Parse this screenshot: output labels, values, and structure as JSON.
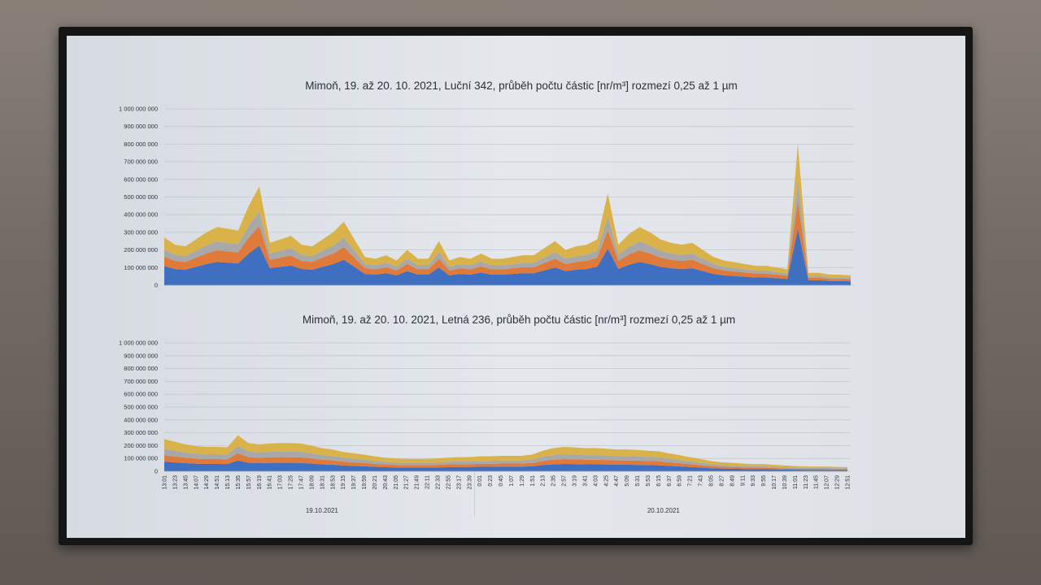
{
  "chart_data": [
    {
      "type": "area",
      "stacked": true,
      "title": "Mimoň, 19. až 20. 10. 2021, Luční 342, průběh počtu částic [nr/m³] rozmezí 0,25 až 1 µm",
      "ylim": [
        0,
        1000000000
      ],
      "yticks": [
        "1 000 000 000",
        "900 000 000",
        "800 000 000",
        "700 000 000",
        "600 000 000",
        "500 000 000",
        "400 000 000",
        "300 000 000",
        "200 000 000",
        "100 000 000",
        "0"
      ],
      "grid": true,
      "x": [
        "13:01",
        "13:23",
        "13:45",
        "14:07",
        "14:29",
        "14:51",
        "15:13",
        "15:35",
        "15:57",
        "16:19",
        "16:41",
        "17:03",
        "17:25",
        "17:47",
        "18:09",
        "18:31",
        "18:53",
        "19:15",
        "19:37",
        "19:59",
        "20:21",
        "20:43",
        "21:05",
        "21:27",
        "21:49",
        "22:11",
        "22:33",
        "22:55",
        "23:17",
        "23:39",
        "0:01",
        "0:23",
        "0:45",
        "1:07",
        "1:29",
        "1:51",
        "2:13",
        "2:35",
        "2:57",
        "3:19",
        "3:41",
        "4:03",
        "4:25",
        "4:47",
        "5:09",
        "5:31",
        "5:53",
        "6:15",
        "6:37",
        "6:59",
        "7:21",
        "7:43",
        "8:05",
        "8:27",
        "8:49",
        "9:11",
        "9:33",
        "9:55",
        "10:17",
        "10:39",
        "11:01",
        "11:23",
        "11:45",
        "12:07",
        "12:29",
        "12:51"
      ],
      "show_x_labels": false,
      "series": [
        {
          "color": "#3f6fc0",
          "values": [
            108000000.0,
            92000000.0,
            88000000.0,
            104000000.0,
            120000000.0,
            132000000.0,
            128000000.0,
            124000000.0,
            180000000.0,
            224000000.0,
            96000000.0,
            104000000.0,
            112000000.0,
            92000000.0,
            88000000.0,
            104000000.0,
            120000000.0,
            144000000.0,
            104000000.0,
            64000000.0,
            60000000.0,
            68000000.0,
            56000000.0,
            80000000.0,
            60000000.0,
            60000000.0,
            100000000.0,
            56000000.0,
            64000000.0,
            60000000.0,
            72000000.0,
            60000000.0,
            60000000.0,
            64000000.0,
            68000000.0,
            68000000.0,
            84000000.0,
            100000000.0,
            80000000.0,
            88000000.0,
            92000000.0,
            104000000.0,
            208000000.0,
            92000000.0,
            116000000.0,
            132000000.0,
            120000000.0,
            104000000.0,
            96000000.0,
            92000000.0,
            96000000.0,
            80000000.0,
            64000000.0,
            56000000.0,
            52000000.0,
            48000000.0,
            44000000.0,
            44000000.0,
            40000000.0,
            36000000.0,
            320000000.0,
            28000000.0,
            28000000.0,
            24000000.0,
            24000000.0,
            22000000.0
          ]
        },
        {
          "color": "#e07a3a",
          "values": [
            54000000.0,
            46000000.0,
            44000000.0,
            52000000.0,
            60000000.0,
            66000000.0,
            64000000.0,
            62000000.0,
            90000000.0,
            112000000.0,
            48000000.0,
            52000000.0,
            56000000.0,
            46000000.0,
            44000000.0,
            52000000.0,
            60000000.0,
            72000000.0,
            52000000.0,
            32000000.0,
            30000000.0,
            34000000.0,
            28000000.0,
            40000000.0,
            30000000.0,
            30000000.0,
            50000000.0,
            28000000.0,
            32000000.0,
            30000000.0,
            36000000.0,
            30000000.0,
            30000000.0,
            32000000.0,
            34000000.0,
            34000000.0,
            42000000.0,
            50000000.0,
            40000000.0,
            44000000.0,
            46000000.0,
            52000000.0,
            104000000.0,
            46000000.0,
            58000000.0,
            66000000.0,
            60000000.0,
            52000000.0,
            48000000.0,
            46000000.0,
            48000000.0,
            40000000.0,
            32000000.0,
            28000000.0,
            26000000.0,
            24000000.0,
            22000000.0,
            22000000.0,
            20000000.0,
            18000000.0,
            160000000.0,
            14000000.0,
            14000000.0,
            12000000.0,
            12000000.0,
            11000000.0
          ]
        },
        {
          "color": "#a8a8a8",
          "values": [
            40000000.0,
            35000000.0,
            33000000.0,
            39000000.0,
            45000000.0,
            50000000.0,
            48000000.0,
            47000000.0,
            68000000.0,
            84000000.0,
            36000000.0,
            39000000.0,
            42000000.0,
            35000000.0,
            33000000.0,
            39000000.0,
            45000000.0,
            54000000.0,
            39000000.0,
            24000000.0,
            23000000.0,
            26000000.0,
            21000000.0,
            30000000.0,
            23000000.0,
            23000000.0,
            38000000.0,
            21000000.0,
            24000000.0,
            23000000.0,
            27000000.0,
            23000000.0,
            23000000.0,
            24000000.0,
            26000000.0,
            26000000.0,
            32000000.0,
            38000000.0,
            30000000.0,
            33000000.0,
            35000000.0,
            39000000.0,
            78000000.0,
            35000000.0,
            44000000.0,
            50000000.0,
            45000000.0,
            39000000.0,
            36000000.0,
            35000000.0,
            36000000.0,
            30000000.0,
            24000000.0,
            21000000.0,
            20000000.0,
            18000000.0,
            17000000.0,
            17000000.0,
            15000000.0,
            14000000.0,
            120000000.0,
            11000000.0,
            11000000.0,
            9000000.0,
            9000000.0,
            8000000.0
          ]
        },
        {
          "color": "#d9b24a",
          "values": [
            68000000.0,
            57000000.0,
            55000000.0,
            65000000.0,
            75000000.0,
            82000000.0,
            80000000.0,
            77000000.0,
            112000000.0,
            140000000.0,
            60000000.0,
            65000000.0,
            70000000.0,
            57000000.0,
            55000000.0,
            65000000.0,
            75000000.0,
            90000000.0,
            65000000.0,
            40000000.0,
            37000000.0,
            42000000.0,
            35000000.0,
            50000000.0,
            37000000.0,
            37000000.0,
            62000000.0,
            35000000.0,
            40000000.0,
            37000000.0,
            45000000.0,
            37000000.0,
            37000000.0,
            40000000.0,
            42000000.0,
            42000000.0,
            52000000.0,
            62000000.0,
            50000000.0,
            55000000.0,
            57000000.0,
            65000000.0,
            130000000.0,
            57000000.0,
            72000000.0,
            82000000.0,
            75000000.0,
            65000000.0,
            60000000.0,
            57000000.0,
            60000000.0,
            50000000.0,
            40000000.0,
            35000000.0,
            32000000.0,
            30000000.0,
            27000000.0,
            27000000.0,
            25000000.0,
            22000000.0,
            200000000.0,
            17000000.0,
            17000000.0,
            15000000.0,
            15000000.0,
            14000000.0
          ]
        }
      ]
    },
    {
      "type": "area",
      "stacked": true,
      "title": "Mimoň, 19. až 20. 10. 2021, Letná 236, průběh počtu částic [nr/m³] rozmezí 0,25 až 1 µm",
      "ylim": [
        0,
        1000000000
      ],
      "yticks": [
        "1 000 000 000",
        "900 000 000",
        "800 000 000",
        "700 000 000",
        "600 000 000",
        "500 000 000",
        "400 000 000",
        "300 000 000",
        "200 000 000",
        "100 000 000",
        "0"
      ],
      "grid": true,
      "x": [
        "13:01",
        "13:23",
        "13:45",
        "14:07",
        "14:29",
        "14:51",
        "15:13",
        "15:35",
        "15:57",
        "16:19",
        "16:41",
        "17:03",
        "17:25",
        "17:47",
        "18:09",
        "18:31",
        "18:53",
        "19:15",
        "19:37",
        "19:59",
        "20:21",
        "20:43",
        "21:05",
        "21:27",
        "21:49",
        "22:11",
        "22:33",
        "22:55",
        "23:17",
        "23:39",
        "0:01",
        "0:23",
        "0:45",
        "1:07",
        "1:29",
        "1:51",
        "2:13",
        "2:35",
        "2:57",
        "3:19",
        "3:41",
        "4:03",
        "4:25",
        "4:47",
        "5:09",
        "5:31",
        "5:53",
        "6:15",
        "6:37",
        "6:59",
        "7:21",
        "7:43",
        "8:05",
        "8:27",
        "8:49",
        "9:11",
        "9:33",
        "9:55",
        "10:17",
        "10:39",
        "11:01",
        "11:23",
        "11:45",
        "12:07",
        "12:29",
        "12:51"
      ],
      "date_labels": [
        "19.10.2021",
        "20.10.2021"
      ],
      "show_x_labels": true,
      "series": [
        {
          "color": "#3f6fc0",
          "values": [
            75000000.0,
            69000000.0,
            63000000.0,
            59000000.0,
            57000000.0,
            57000000.0,
            56000000.0,
            84000000.0,
            66000000.0,
            63000000.0,
            65000000.0,
            66000000.0,
            66000000.0,
            65000000.0,
            60000000.0,
            54000000.0,
            51000000.0,
            45000000.0,
            42000000.0,
            39000000.0,
            35000000.0,
            32000000.0,
            30000000.0,
            29000000.0,
            29000000.0,
            29000000.0,
            30000000.0,
            32000000.0,
            33000000.0,
            33000000.0,
            35000000.0,
            35000000.0,
            36000000.0,
            36000000.0,
            36000000.0,
            39000000.0,
            48000000.0,
            54000000.0,
            57000000.0,
            56000000.0,
            54000000.0,
            54000000.0,
            53000000.0,
            51000000.0,
            51000000.0,
            50000000.0,
            48000000.0,
            47000000.0,
            42000000.0,
            38000000.0,
            33000000.0,
            29000000.0,
            24000000.0,
            21000000.0,
            20000000.0,
            18000000.0,
            17000000.0,
            17000000.0,
            15000000.0,
            14000000.0,
            12000000.0,
            11000000.0,
            11000000.0,
            11000000.0,
            10000000.0,
            10000000.0
          ]
        },
        {
          "color": "#e07a3a",
          "values": [
            50000000.0,
            46000000.0,
            42000000.0,
            39000000.0,
            38000000.0,
            38000000.0,
            37000000.0,
            56000000.0,
            44000000.0,
            42000000.0,
            43000000.0,
            44000000.0,
            44000000.0,
            43000000.0,
            40000000.0,
            36000000.0,
            34000000.0,
            30000000.0,
            28000000.0,
            26000000.0,
            23000000.0,
            21000000.0,
            20000000.0,
            19000000.0,
            19000000.0,
            19000000.0,
            20000000.0,
            21000000.0,
            22000000.0,
            22000000.0,
            23000000.0,
            23000000.0,
            24000000.0,
            24000000.0,
            24000000.0,
            26000000.0,
            32000000.0,
            36000000.0,
            38000000.0,
            37000000.0,
            36000000.0,
            36000000.0,
            35000000.0,
            34000000.0,
            34000000.0,
            33000000.0,
            32000000.0,
            31000000.0,
            28000000.0,
            25000000.0,
            22000000.0,
            19000000.0,
            16000000.0,
            14000000.0,
            13000000.0,
            12000000.0,
            11000000.0,
            11000000.0,
            10000000.0,
            9000000.0,
            8000000.0,
            8000000.0,
            7000000.0,
            7000000.0,
            7000000.0,
            6000000.0
          ]
        },
        {
          "color": "#a8a8a8",
          "values": [
            50000000.0,
            46000000.0,
            42000000.0,
            39000000.0,
            38000000.0,
            38000000.0,
            37000000.0,
            56000000.0,
            44000000.0,
            42000000.0,
            43000000.0,
            44000000.0,
            44000000.0,
            43000000.0,
            40000000.0,
            36000000.0,
            34000000.0,
            30000000.0,
            28000000.0,
            26000000.0,
            23000000.0,
            21000000.0,
            20000000.0,
            19000000.0,
            19000000.0,
            19000000.0,
            20000000.0,
            21000000.0,
            22000000.0,
            22000000.0,
            23000000.0,
            23000000.0,
            24000000.0,
            24000000.0,
            24000000.0,
            26000000.0,
            32000000.0,
            36000000.0,
            38000000.0,
            37000000.0,
            36000000.0,
            36000000.0,
            35000000.0,
            34000000.0,
            34000000.0,
            33000000.0,
            32000000.0,
            31000000.0,
            28000000.0,
            25000000.0,
            22000000.0,
            19000000.0,
            16000000.0,
            14000000.0,
            13000000.0,
            12000000.0,
            11000000.0,
            11000000.0,
            10000000.0,
            9000000.0,
            8000000.0,
            8000000.0,
            7000000.0,
            7000000.0,
            7000000.0,
            6000000.0
          ]
        },
        {
          "color": "#d9b24a",
          "values": [
            75000000.0,
            69000000.0,
            63000000.0,
            59000000.0,
            57000000.0,
            57000000.0,
            56000000.0,
            84000000.0,
            66000000.0,
            63000000.0,
            65000000.0,
            66000000.0,
            66000000.0,
            65000000.0,
            60000000.0,
            54000000.0,
            51000000.0,
            45000000.0,
            42000000.0,
            39000000.0,
            35000000.0,
            32000000.0,
            30000000.0,
            29000000.0,
            29000000.0,
            29000000.0,
            30000000.0,
            32000000.0,
            33000000.0,
            33000000.0,
            35000000.0,
            35000000.0,
            36000000.0,
            36000000.0,
            36000000.0,
            39000000.0,
            48000000.0,
            54000000.0,
            57000000.0,
            56000000.0,
            54000000.0,
            54000000.0,
            53000000.0,
            51000000.0,
            51000000.0,
            50000000.0,
            48000000.0,
            47000000.0,
            42000000.0,
            38000000.0,
            33000000.0,
            29000000.0,
            24000000.0,
            21000000.0,
            20000000.0,
            18000000.0,
            17000000.0,
            17000000.0,
            15000000.0,
            14000000.0,
            12000000.0,
            11000000.0,
            11000000.0,
            11000000.0,
            10000000.0,
            10000000.0
          ]
        }
      ]
    }
  ]
}
